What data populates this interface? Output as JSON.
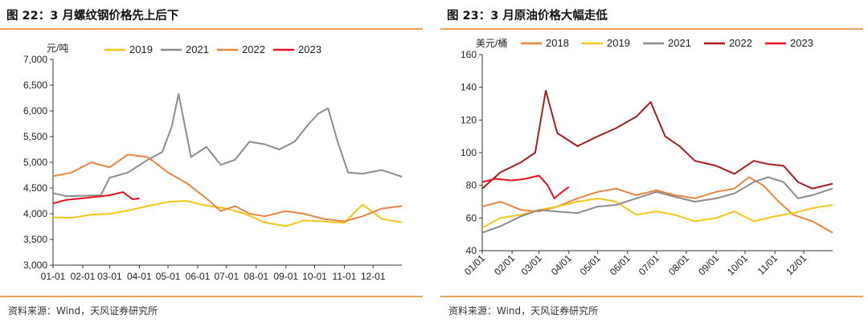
{
  "charts": [
    {
      "title": "图 22：3 月螺纹钢价格先上后下",
      "source": "资料来源：Wind，天风证券研究所"
    },
    {
      "title": "图 23：3 月原油价格大幅走低",
      "source": "资料来源：Wind，天风证券研究所"
    }
  ],
  "chart_data": [
    {
      "type": "line",
      "title": "图 22：3 月螺纹钢价格先上后下",
      "ylabel": "元/吨",
      "xlabel": "",
      "ylim": [
        3000,
        7000
      ],
      "yticks": [
        3000,
        3500,
        4000,
        4500,
        5000,
        5500,
        6000,
        6500,
        7000
      ],
      "ytick_labels": [
        "3,000",
        "3,500",
        "4,000",
        "4,500",
        "5,000",
        "5,500",
        "6,000",
        "6,500",
        "7,000"
      ],
      "xlim": [
        "01-01",
        "12-31"
      ],
      "xticks": [
        "01-01",
        "02-01",
        "03-01",
        "04-01",
        "05-01",
        "06-01",
        "07-01",
        "08-01",
        "09-01",
        "10-01",
        "11-01",
        "12-01"
      ],
      "legend_position": "top",
      "grid": false,
      "series": [
        {
          "name": "2019",
          "color": "#f5c518",
          "x": [
            "01-01",
            "01-20",
            "02-10",
            "03-01",
            "03-20",
            "04-10",
            "05-01",
            "05-20",
            "06-10",
            "07-01",
            "07-20",
            "08-10",
            "09-01",
            "09-20",
            "10-10",
            "11-01",
            "11-20",
            "12-10",
            "12-31"
          ],
          "values": [
            3930,
            3920,
            3980,
            4000,
            4060,
            4150,
            4230,
            4250,
            4160,
            4100,
            4000,
            3830,
            3760,
            3870,
            3850,
            3820,
            4180,
            3900,
            3830
          ]
        },
        {
          "name": "2021",
          "color": "#8c8c8c",
          "x": [
            "01-01",
            "01-15",
            "02-01",
            "02-20",
            "03-01",
            "03-20",
            "04-10",
            "04-25",
            "05-05",
            "05-12",
            "05-25",
            "06-10",
            "06-25",
            "07-10",
            "07-25",
            "08-10",
            "08-25",
            "09-10",
            "09-25",
            "10-05",
            "10-15",
            "10-25",
            "11-05",
            "11-20",
            "12-10",
            "12-31"
          ],
          "values": [
            4400,
            4340,
            4350,
            4360,
            4700,
            4800,
            5050,
            5200,
            5700,
            6330,
            5100,
            5300,
            4950,
            5050,
            5400,
            5350,
            5250,
            5400,
            5750,
            5950,
            6050,
            5400,
            4800,
            4780,
            4850,
            4720
          ]
        },
        {
          "name": "2022",
          "color": "#e8843f",
          "x": [
            "01-01",
            "01-20",
            "02-10",
            "03-01",
            "03-20",
            "04-10",
            "05-01",
            "05-20",
            "06-10",
            "06-25",
            "07-10",
            "07-25",
            "08-10",
            "09-01",
            "09-20",
            "10-10",
            "11-01",
            "11-20",
            "12-10",
            "12-31"
          ],
          "values": [
            4730,
            4800,
            5000,
            4900,
            5150,
            5100,
            4800,
            4600,
            4300,
            4050,
            4150,
            4000,
            3950,
            4050,
            4000,
            3900,
            3850,
            3950,
            4100,
            4150
          ]
        },
        {
          "name": "2023",
          "color": "#e8121c",
          "x": [
            "01-01",
            "01-15",
            "02-01",
            "02-15",
            "03-01",
            "03-15",
            "03-25",
            "04-01"
          ],
          "values": [
            4200,
            4270,
            4300,
            4330,
            4360,
            4420,
            4280,
            4300
          ]
        }
      ]
    },
    {
      "type": "line",
      "title": "图 23：3 月原油价格大幅走低",
      "ylabel": "美元/桶",
      "xlabel": "",
      "ylim": [
        40,
        160
      ],
      "yticks": [
        40,
        60,
        80,
        100,
        120,
        140,
        160
      ],
      "ytick_labels": [
        "40",
        "60",
        "80",
        "100",
        "120",
        "140",
        "160"
      ],
      "xlim": [
        "01/01",
        "12/31"
      ],
      "xticks": [
        "01/01",
        "02/01",
        "03/01",
        "04/01",
        "05/01",
        "06/01",
        "07/01",
        "08/01",
        "09/01",
        "10/01",
        "11/01",
        "12/01"
      ],
      "legend_position": "top",
      "grid": false,
      "series": [
        {
          "name": "2018",
          "color": "#e8843f",
          "x": [
            "01/01",
            "01/20",
            "02/10",
            "03/01",
            "03/20",
            "04/10",
            "05/01",
            "05/20",
            "06/10",
            "07/01",
            "07/20",
            "08/10",
            "09/01",
            "09/20",
            "10/05",
            "10/20",
            "11/05",
            "11/20",
            "12/10",
            "12/31"
          ],
          "values": [
            67,
            70,
            65,
            64,
            67,
            72,
            76,
            78,
            74,
            77,
            74,
            72,
            76,
            78,
            85,
            80,
            70,
            62,
            58,
            51
          ]
        },
        {
          "name": "2019",
          "color": "#f5c518",
          "x": [
            "01/01",
            "01/20",
            "02/10",
            "03/01",
            "03/20",
            "04/10",
            "05/01",
            "05/20",
            "06/10",
            "07/01",
            "07/20",
            "08/10",
            "09/01",
            "09/20",
            "10/10",
            "11/01",
            "11/20",
            "12/10",
            "12/31"
          ],
          "values": [
            54,
            60,
            62,
            65,
            67,
            70,
            72,
            70,
            62,
            64,
            62,
            58,
            60,
            64,
            58,
            61,
            63,
            66,
            68
          ]
        },
        {
          "name": "2021",
          "color": "#8c8c8c",
          "x": [
            "01/01",
            "01/20",
            "02/10",
            "03/01",
            "03/20",
            "04/10",
            "05/01",
            "05/20",
            "06/10",
            "07/01",
            "07/20",
            "08/10",
            "09/01",
            "09/20",
            "10/10",
            "10/25",
            "11/10",
            "11/25",
            "12/10",
            "12/31"
          ],
          "values": [
            51,
            55,
            61,
            65,
            64,
            63,
            67,
            68,
            72,
            76,
            73,
            70,
            72,
            75,
            82,
            85,
            82,
            72,
            74,
            78
          ]
        },
        {
          "name": "2022",
          "color": "#a81d1d",
          "x": [
            "01/01",
            "01/20",
            "02/10",
            "02/25",
            "03/08",
            "03/20",
            "04/10",
            "05/01",
            "05/20",
            "06/10",
            "06/25",
            "07/10",
            "07/25",
            "08/10",
            "09/01",
            "09/20",
            "10/10",
            "10/25",
            "11/10",
            "11/25",
            "12/10",
            "12/31"
          ],
          "values": [
            78,
            88,
            94,
            100,
            138,
            112,
            104,
            110,
            115,
            122,
            131,
            110,
            104,
            95,
            92,
            87,
            95,
            93,
            92,
            82,
            78,
            81
          ]
        },
        {
          "name": "2023",
          "color": "#e8121c",
          "x": [
            "01/01",
            "01/15",
            "02/01",
            "02/15",
            "03/01",
            "03/10",
            "03/17",
            "03/25",
            "04/01"
          ],
          "values": [
            82,
            84,
            83,
            84,
            86,
            80,
            72,
            76,
            79
          ]
        }
      ]
    }
  ]
}
